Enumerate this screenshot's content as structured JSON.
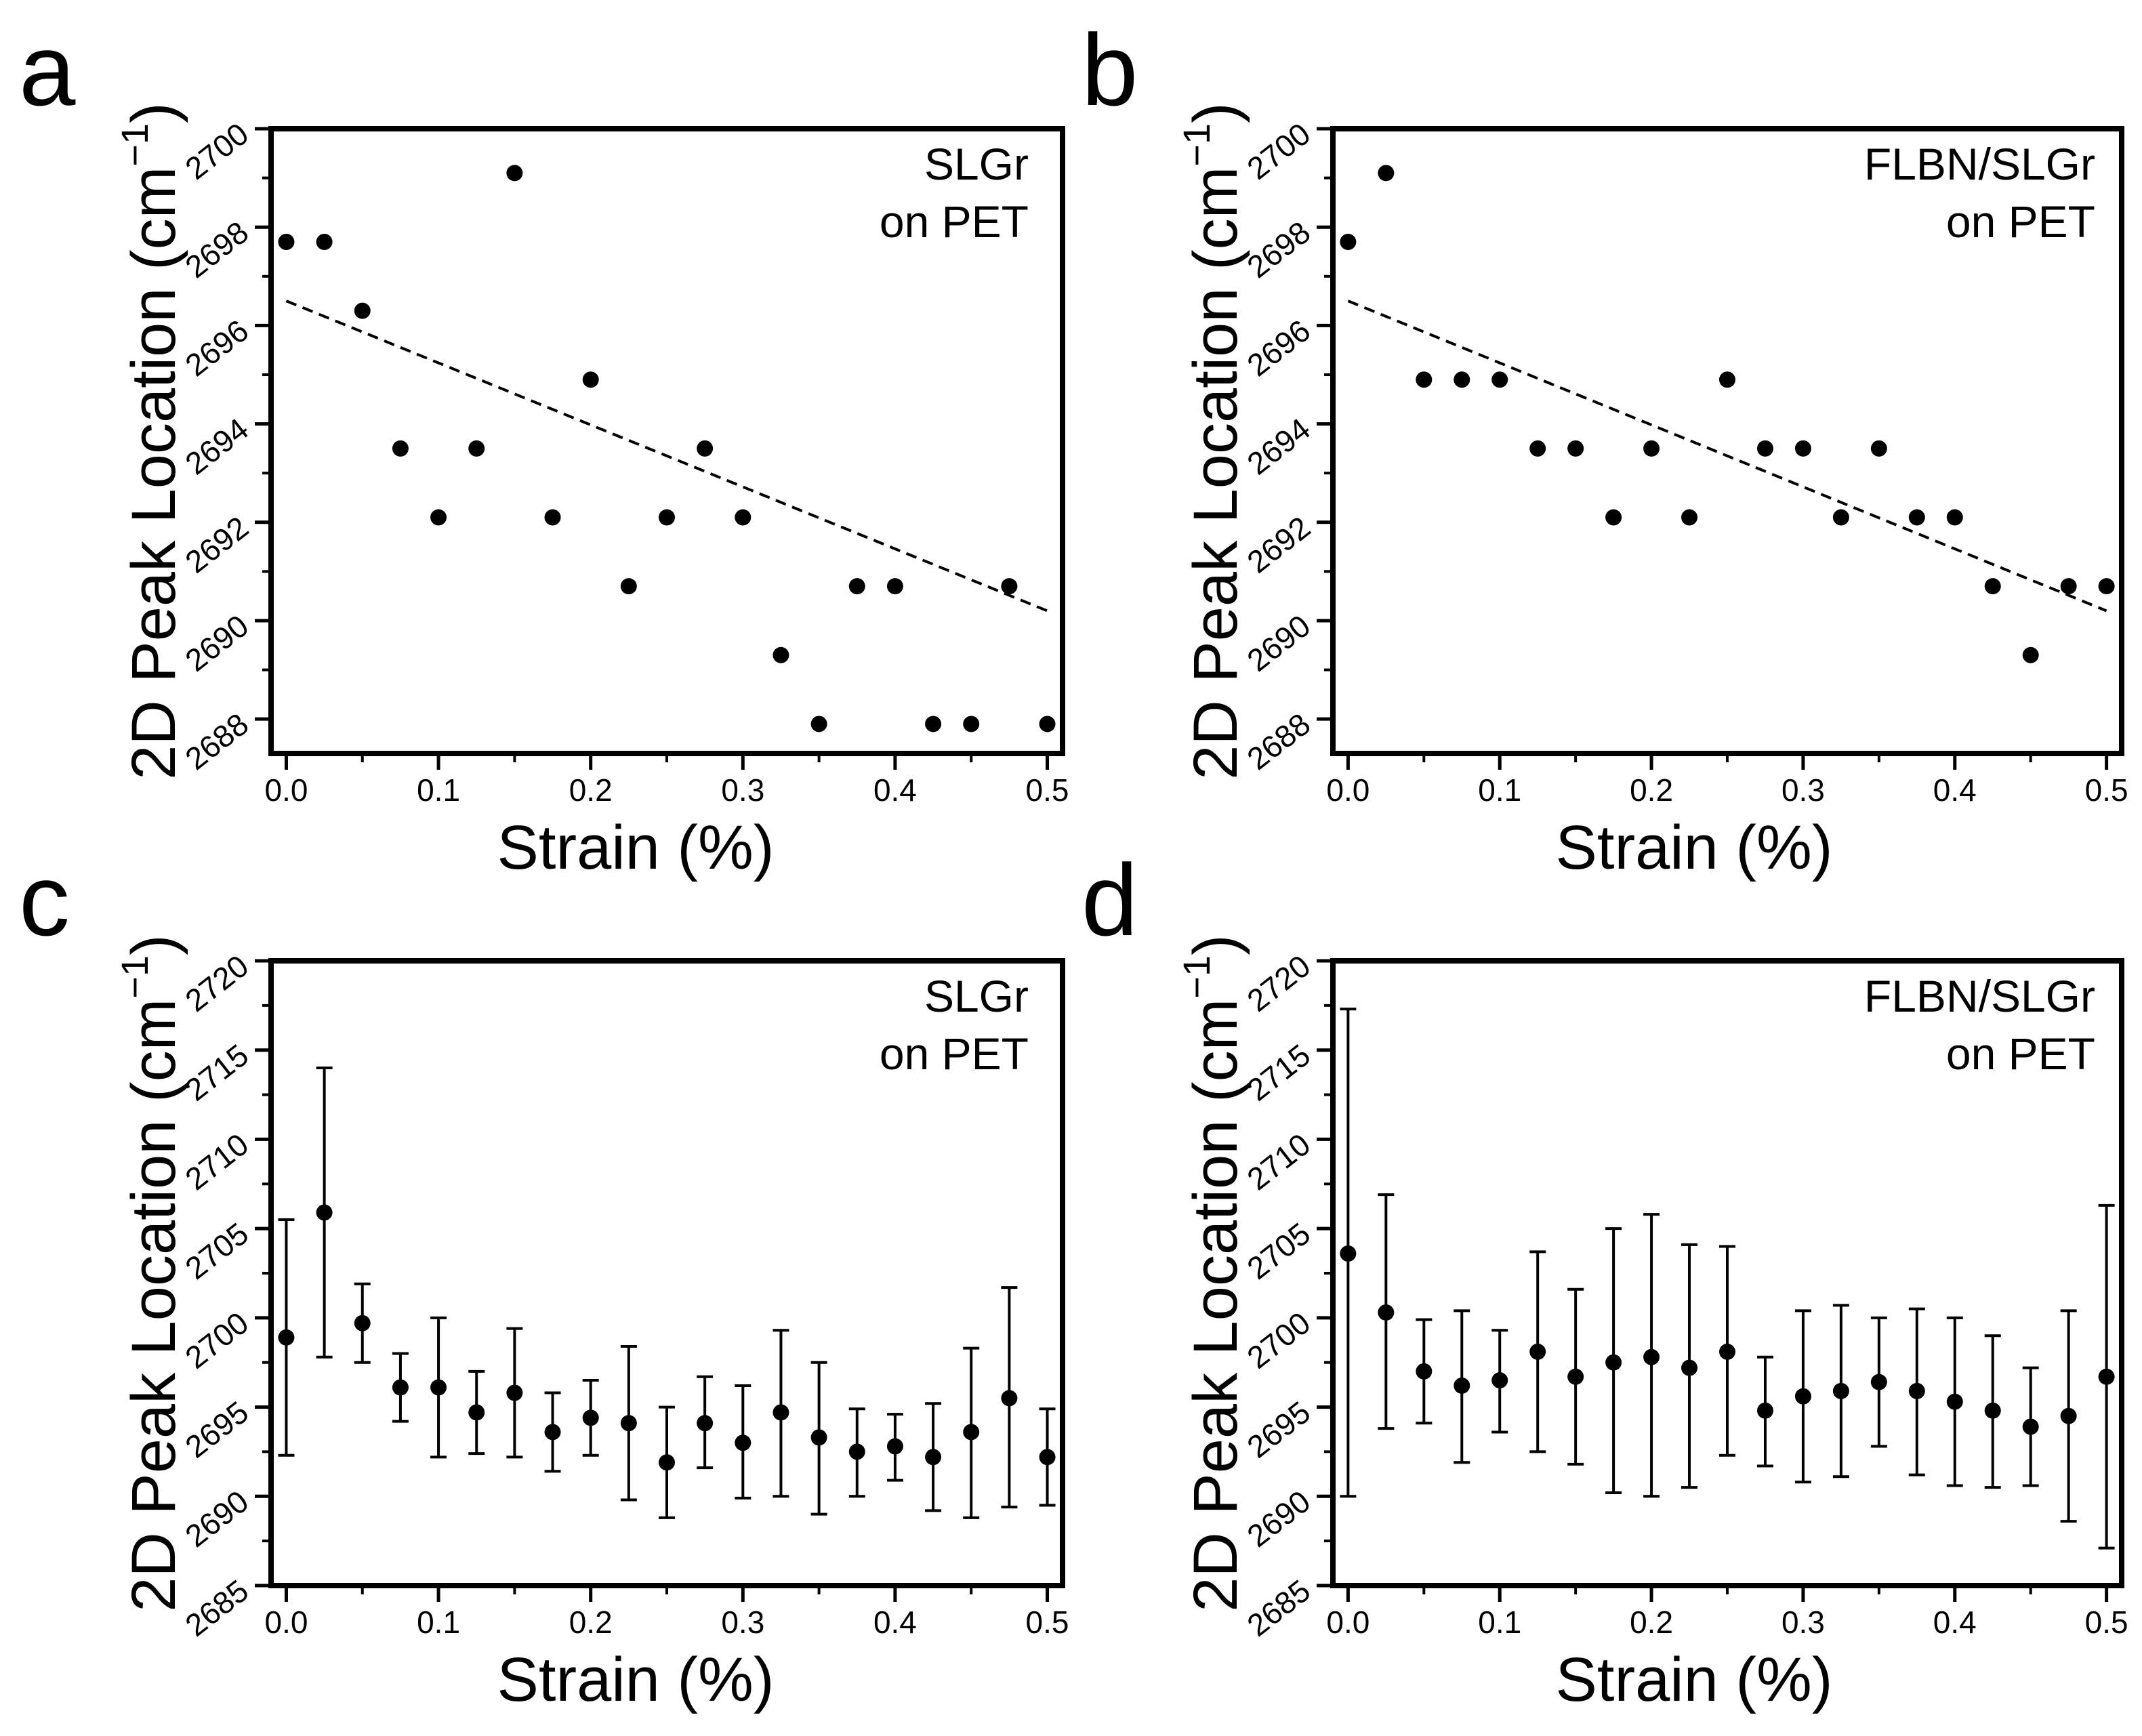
{
  "chart_data": [
    {
      "panel": "a",
      "type": "scatter",
      "xlabel": "Strain (%)",
      "ylabel": "2D Peak Location (cm",
      "ylabel_sup": "−1",
      "ylabel_close": ")",
      "xlim": [
        -0.01,
        0.51
      ],
      "ylim": [
        2687.3,
        2700.0
      ],
      "xticks": [
        0.0,
        0.1,
        0.2,
        0.3,
        0.4,
        0.5
      ],
      "xtick_labels": [
        "0.0",
        "0.1",
        "0.2",
        "0.3",
        "0.4",
        "0.5"
      ],
      "yticks": [
        2688,
        2690,
        2692,
        2694,
        2696,
        2698,
        2700
      ],
      "ytick_labels": [
        "2688",
        "2690",
        "2692",
        "2694",
        "2696",
        "2698",
        "2700"
      ],
      "legend": [
        "SLGr",
        "on PET"
      ],
      "x": [
        0.0,
        0.025,
        0.05,
        0.075,
        0.1,
        0.125,
        0.15,
        0.175,
        0.2,
        0.225,
        0.25,
        0.275,
        0.3,
        0.325,
        0.35,
        0.375,
        0.4,
        0.425,
        0.45,
        0.475,
        0.5
      ],
      "y": [
        2697.7,
        2697.7,
        2696.3,
        2693.5,
        2692.1,
        2693.5,
        2699.1,
        2692.1,
        2694.9,
        2690.7,
        2692.1,
        2693.5,
        2692.1,
        2689.3,
        2687.9,
        2690.7,
        2690.7,
        2687.9,
        2687.9,
        2690.7,
        2687.9
      ],
      "fit": {
        "style": "dashed",
        "x": [
          0.0,
          0.5
        ],
        "y": [
          2696.5,
          2690.2
        ]
      }
    },
    {
      "panel": "b",
      "type": "scatter",
      "xlabel": "Strain (%)",
      "ylabel": "2D Peak Location (cm",
      "ylabel_sup": "−1",
      "ylabel_close": ")",
      "xlim": [
        -0.01,
        0.51
      ],
      "ylim": [
        2687.3,
        2700.0
      ],
      "xticks": [
        0.0,
        0.1,
        0.2,
        0.3,
        0.4,
        0.5
      ],
      "xtick_labels": [
        "0.0",
        "0.1",
        "0.2",
        "0.3",
        "0.4",
        "0.5"
      ],
      "yticks": [
        2688,
        2690,
        2692,
        2694,
        2696,
        2698,
        2700
      ],
      "ytick_labels": [
        "2688",
        "2690",
        "2692",
        "2694",
        "2696",
        "2698",
        "2700"
      ],
      "legend": [
        "FLBN/SLGr",
        "on PET"
      ],
      "x": [
        0.0,
        0.025,
        0.05,
        0.075,
        0.1,
        0.125,
        0.15,
        0.175,
        0.2,
        0.225,
        0.25,
        0.275,
        0.3,
        0.325,
        0.35,
        0.375,
        0.4,
        0.425,
        0.45,
        0.475,
        0.5
      ],
      "y": [
        2697.7,
        2699.1,
        2694.9,
        2694.9,
        2694.9,
        2693.5,
        2693.5,
        2692.1,
        2693.5,
        2692.1,
        2694.9,
        2693.5,
        2693.5,
        2692.1,
        2693.5,
        2692.1,
        2692.1,
        2690.7,
        2689.3,
        2690.7,
        2690.7
      ],
      "fit": {
        "style": "dashed",
        "x": [
          0.0,
          0.5
        ],
        "y": [
          2696.5,
          2690.2
        ]
      }
    },
    {
      "panel": "c",
      "type": "scatter",
      "xlabel": "Strain (%)",
      "ylabel": "2D Peak Location (cm",
      "ylabel_sup": "−1",
      "ylabel_close": ")",
      "xlim": [
        -0.01,
        0.51
      ],
      "ylim": [
        2685,
        2720
      ],
      "xticks": [
        0.0,
        0.1,
        0.2,
        0.3,
        0.4,
        0.5
      ],
      "xtick_labels": [
        "0.0",
        "0.1",
        "0.2",
        "0.3",
        "0.4",
        "0.5"
      ],
      "yticks": [
        2685,
        2690,
        2695,
        2700,
        2705,
        2710,
        2715,
        2720
      ],
      "ytick_labels": [
        "2685",
        "2690",
        "2695",
        "2700",
        "2705",
        "2710",
        "2715",
        "2720"
      ],
      "legend": [
        "SLGr",
        "on PET"
      ],
      "x": [
        0.0,
        0.025,
        0.05,
        0.075,
        0.1,
        0.125,
        0.15,
        0.175,
        0.2,
        0.225,
        0.25,
        0.275,
        0.3,
        0.325,
        0.35,
        0.375,
        0.4,
        0.425,
        0.45,
        0.475,
        0.5
      ],
      "y": [
        2698.9,
        2705.9,
        2699.7,
        2696.1,
        2696.1,
        2694.7,
        2695.8,
        2693.6,
        2694.4,
        2694.1,
        2691.9,
        2694.1,
        2693.0,
        2694.7,
        2693.3,
        2692.5,
        2692.8,
        2692.2,
        2693.6,
        2695.5,
        2692.2
      ],
      "err_low": [
        2692.3,
        2697.8,
        2697.5,
        2694.2,
        2692.2,
        2692.4,
        2692.2,
        2691.4,
        2692.3,
        2689.8,
        2688.8,
        2691.6,
        2689.9,
        2690.0,
        2689.0,
        2690.0,
        2690.9,
        2689.2,
        2688.8,
        2689.4,
        2689.5
      ],
      "err_high": [
        2705.5,
        2714.0,
        2701.9,
        2698.0,
        2700.0,
        2697.0,
        2699.4,
        2695.8,
        2696.5,
        2698.4,
        2695.0,
        2696.7,
        2696.2,
        2699.3,
        2697.5,
        2694.9,
        2694.6,
        2695.2,
        2698.3,
        2701.7,
        2694.9
      ]
    },
    {
      "panel": "d",
      "type": "scatter",
      "xlabel": "Strain (%)",
      "ylabel": "2D Peak Location (cm",
      "ylabel_sup": "−1",
      "ylabel_close": ")",
      "xlim": [
        -0.01,
        0.51
      ],
      "ylim": [
        2685,
        2720
      ],
      "xticks": [
        0.0,
        0.1,
        0.2,
        0.3,
        0.4,
        0.5
      ],
      "xtick_labels": [
        "0.0",
        "0.1",
        "0.2",
        "0.3",
        "0.4",
        "0.5"
      ],
      "yticks": [
        2685,
        2690,
        2695,
        2700,
        2705,
        2710,
        2715,
        2720
      ],
      "ytick_labels": [
        "2685",
        "2690",
        "2695",
        "2700",
        "2705",
        "2710",
        "2715",
        "2720"
      ],
      "legend": [
        "FLBN/SLGr",
        "on PET"
      ],
      "x": [
        0.0,
        0.025,
        0.05,
        0.075,
        0.1,
        0.125,
        0.15,
        0.175,
        0.2,
        0.225,
        0.25,
        0.275,
        0.3,
        0.325,
        0.35,
        0.375,
        0.4,
        0.425,
        0.45,
        0.475,
        0.5
      ],
      "y": [
        2703.6,
        2700.3,
        2697.0,
        2696.2,
        2696.5,
        2698.1,
        2696.7,
        2697.5,
        2697.8,
        2697.2,
        2698.1,
        2694.8,
        2695.6,
        2695.9,
        2696.4,
        2695.9,
        2695.3,
        2694.8,
        2693.9,
        2694.5,
        2696.7
      ],
      "err_low": [
        2690.0,
        2693.8,
        2694.1,
        2691.9,
        2693.6,
        2692.5,
        2691.8,
        2690.2,
        2690.0,
        2690.5,
        2692.3,
        2691.7,
        2690.8,
        2691.1,
        2692.8,
        2691.2,
        2690.6,
        2690.5,
        2690.6,
        2688.6,
        2687.1
      ],
      "err_high": [
        2717.3,
        2706.9,
        2699.9,
        2700.4,
        2699.3,
        2703.7,
        2701.6,
        2705.0,
        2705.8,
        2704.1,
        2704.0,
        2697.8,
        2700.4,
        2700.7,
        2700.0,
        2700.5,
        2700.0,
        2699.0,
        2697.2,
        2700.4,
        2706.3
      ]
    }
  ]
}
